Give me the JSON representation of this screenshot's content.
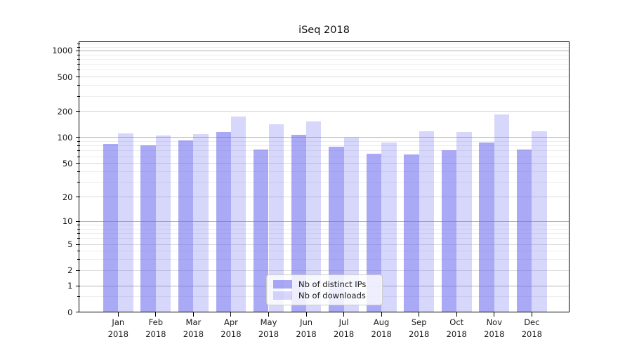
{
  "title": "iSeq 2018",
  "legend": {
    "items": [
      {
        "label": "Nb of distinct IPs",
        "swatch_color": "rgba(102,102,238,0.56)"
      },
      {
        "label": "Nb of downloads",
        "swatch_color": "rgba(102,102,238,0.26)"
      }
    ]
  },
  "colors": {
    "bar_ips": "rgba(102,102,238,0.56)",
    "bar_downloads": "rgba(102,102,238,0.26)",
    "bar_ips_flat": "#aaaaf5",
    "bar_downloads_flat": "#d9d9f7",
    "grid_decade": "#b3b3b3",
    "grid_labeled": "#d9d9d9",
    "grid_minor": "#ededed",
    "axis": "#000000",
    "text": "#1a1a1a"
  },
  "axes": {
    "y_tick_labels": [
      "0",
      "1",
      "2",
      "5",
      "10",
      "20",
      "50",
      "100",
      "200",
      "500",
      "1000"
    ],
    "x_months": [
      "Jan",
      "Feb",
      "Mar",
      "Apr",
      "May",
      "Jun",
      "Jul",
      "Aug",
      "Sep",
      "Oct",
      "Nov",
      "Dec"
    ],
    "x_year": "2018"
  },
  "chart_data": {
    "type": "bar",
    "title": "iSeq 2018",
    "categories": [
      "Jan 2018",
      "Feb 2018",
      "Mar 2018",
      "Apr 2018",
      "May 2018",
      "Jun 2018",
      "Jul 2018",
      "Aug 2018",
      "Sep 2018",
      "Oct 2018",
      "Nov 2018",
      "Dec 2018"
    ],
    "series": [
      {
        "name": "Nb of distinct IPs",
        "values": [
          85,
          82,
          92,
          116,
          72,
          108,
          78,
          65,
          64,
          71,
          88,
          72
        ]
      },
      {
        "name": "Nb of downloads",
        "values": [
          112,
          105,
          110,
          176,
          142,
          153,
          100,
          88,
          118,
          117,
          186,
          119
        ]
      }
    ],
    "xlabel": "",
    "ylabel": "",
    "yscale": "log1p",
    "yticks": [
      0,
      1,
      2,
      5,
      10,
      20,
      50,
      100,
      200,
      500,
      1000
    ],
    "minor_yticks": [
      0.5,
      3,
      4,
      6,
      7,
      8,
      9,
      30,
      40,
      60,
      70,
      80,
      90,
      300,
      400,
      600,
      700,
      800,
      900,
      1100,
      1200
    ],
    "decade_ticks": [
      1,
      10,
      100,
      1000
    ],
    "ylim": [
      0,
      1260
    ],
    "grid": true,
    "legend_position": "inside lower-center"
  }
}
